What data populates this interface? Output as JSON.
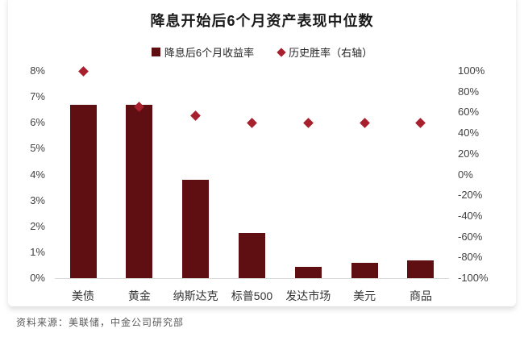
{
  "title": "降息开始后6个月资产表现中位数",
  "legend": {
    "items": [
      {
        "label": "降息后6个月收益率",
        "marker": "square-icon"
      },
      {
        "label": "历史胜率（右轴）",
        "marker": "diamond-icon"
      }
    ]
  },
  "footer": {
    "source": "资料来源：美联储，中金公司研究部"
  },
  "colors": {
    "bar": "#5f0e11",
    "diamond": "#a8202d",
    "baseline": "#d9d9d9",
    "axis_text": "#404040"
  },
  "chart_data": {
    "type": "bar",
    "title": "降息开始后6个月资产表现中位数",
    "categories": [
      "美债",
      "黄金",
      "纳斯达克",
      "标普500",
      "发达市场",
      "美元",
      "商品"
    ],
    "series": [
      {
        "name": "降息后6个月收益率",
        "type": "bar",
        "axis": "left",
        "unit": "%",
        "values": [
          6.7,
          6.7,
          3.8,
          1.75,
          0.45,
          0.6,
          0.7
        ]
      },
      {
        "name": "历史胜率（右轴）",
        "type": "scatter",
        "axis": "right",
        "unit": "%",
        "values": [
          100,
          65,
          57,
          50,
          50,
          50,
          50
        ]
      }
    ],
    "left_axis": {
      "min": 0,
      "max": 8,
      "step": 1,
      "labels": [
        "0%",
        "1%",
        "2%",
        "3%",
        "4%",
        "5%",
        "6%",
        "7%",
        "8%"
      ]
    },
    "right_axis": {
      "min": -100,
      "max": 100,
      "step": 20,
      "labels": [
        "-100%",
        "-80%",
        "-60%",
        "-40%",
        "-20%",
        "0%",
        "20%",
        "40%",
        "60%",
        "80%",
        "100%"
      ]
    },
    "grid": false,
    "legend_position": "top"
  }
}
